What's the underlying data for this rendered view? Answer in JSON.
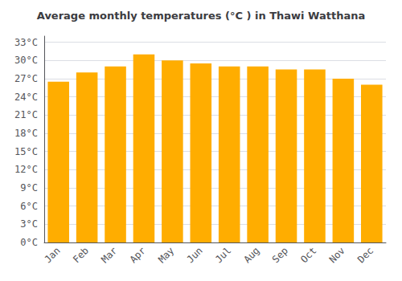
{
  "chart_data": {
    "type": "bar",
    "title": "Average monthly temperatures (°C ) in Thawi Watthana",
    "categories": [
      "Jan",
      "Feb",
      "Mar",
      "Apr",
      "May",
      "Jun",
      "Jul",
      "Aug",
      "Sep",
      "Oct",
      "Nov",
      "Dec"
    ],
    "values": [
      26.5,
      28.0,
      29.0,
      31.0,
      30.0,
      29.5,
      29.0,
      29.0,
      28.5,
      28.5,
      27.0,
      26.0
    ],
    "color": "#FFAD00",
    "ylim": [
      0,
      34
    ],
    "yticks": [
      {
        "value": 0,
        "label": "0°C"
      },
      {
        "value": 3,
        "label": "3°C"
      },
      {
        "value": 6,
        "label": "6°C"
      },
      {
        "value": 9,
        "label": "9°C"
      },
      {
        "value": 12,
        "label": "12°C"
      },
      {
        "value": 15,
        "label": "15°C"
      },
      {
        "value": 18,
        "label": "18°C"
      },
      {
        "value": 21,
        "label": "21°C"
      },
      {
        "value": 24,
        "label": "24°C"
      },
      {
        "value": 27,
        "label": "27°C"
      },
      {
        "value": 30,
        "label": "30°C"
      },
      {
        "value": 33,
        "label": "33°C"
      }
    ],
    "grid": true
  }
}
